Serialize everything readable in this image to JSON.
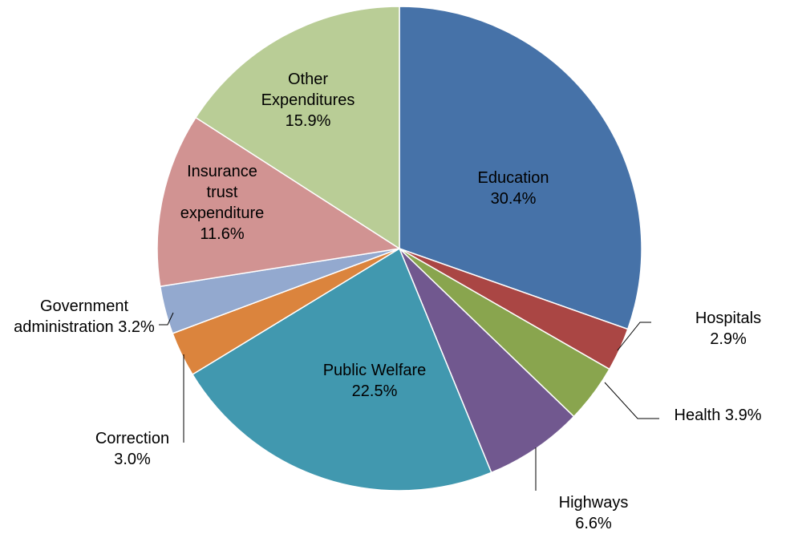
{
  "chart_data": {
    "type": "pie",
    "categories": [
      "Education",
      "Hospitals",
      "Health",
      "Highways",
      "Public Welfare",
      "Correction",
      "Government administration",
      "Insurance trust expenditure",
      "Other Expenditures"
    ],
    "values": [
      30.4,
      2.9,
      3.9,
      6.6,
      22.5,
      3.0,
      3.2,
      11.6,
      15.9
    ],
    "value_labels": [
      "30.4%",
      "2.9%",
      "3.9%",
      "6.6%",
      "22.5%",
      "3.0%",
      "3.2%",
      "11.6%",
      "15.9%"
    ],
    "colors": [
      "#4672a8",
      "#aa4644",
      "#89a54e",
      "#71588f",
      "#4198af",
      "#db843d",
      "#93a9cf",
      "#d19392",
      "#b9cd96"
    ]
  }
}
